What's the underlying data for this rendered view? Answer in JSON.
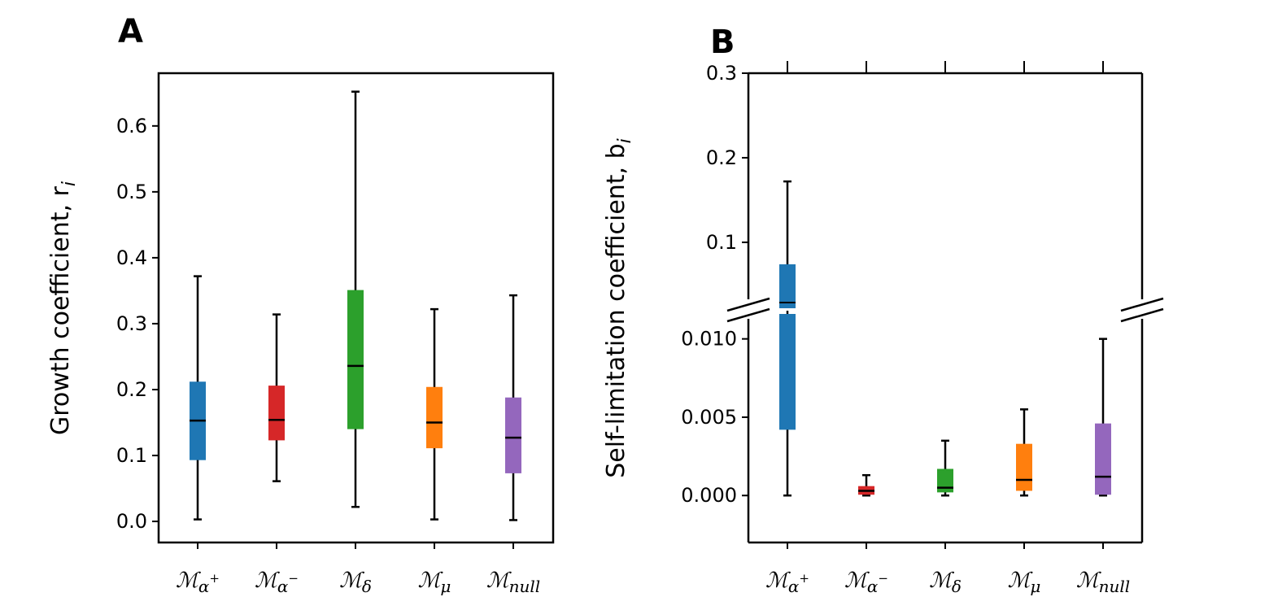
{
  "chart_data": [
    {
      "type": "box",
      "panel_label": "A",
      "ylabel": "Growth coefficient, r",
      "ylabel_sub": "i",
      "ylim": [
        -0.032,
        0.68
      ],
      "yticks": [
        "0.0",
        "0.1",
        "0.2",
        "0.3",
        "0.4",
        "0.5",
        "0.6"
      ],
      "ytick_values": [
        0.0,
        0.1,
        0.2,
        0.3,
        0.4,
        0.5,
        0.6
      ],
      "categories": [
        {
          "base": "ℳ",
          "sub": "α",
          "sup": "+"
        },
        {
          "base": "ℳ",
          "sub": "α",
          "sup": "−"
        },
        {
          "base": "ℳ",
          "sub": "δ",
          "sup": ""
        },
        {
          "base": "ℳ",
          "sub": "μ",
          "sup": ""
        },
        {
          "base": "ℳ",
          "sub": "null",
          "sup": ""
        }
      ],
      "colors": [
        "#1f77b4",
        "#d62728",
        "#2ca02c",
        "#ff7f0e",
        "#9467bd"
      ],
      "boxes": [
        {
          "whislo": 0.003,
          "q1": 0.093,
          "med": 0.153,
          "q3": 0.212,
          "whishi": 0.372
        },
        {
          "whislo": 0.061,
          "q1": 0.123,
          "med": 0.154,
          "q3": 0.206,
          "whishi": 0.314
        },
        {
          "whislo": 0.022,
          "q1": 0.14,
          "med": 0.236,
          "q3": 0.351,
          "whishi": 0.652
        },
        {
          "whislo": 0.003,
          "q1": 0.111,
          "med": 0.15,
          "q3": 0.204,
          "whishi": 0.322
        },
        {
          "whislo": 0.002,
          "q1": 0.073,
          "med": 0.127,
          "q3": 0.188,
          "whishi": 0.343
        }
      ]
    },
    {
      "type": "box",
      "panel_label": "B",
      "ylabel": "Self-limitation coefficient, b",
      "ylabel_sub": "i",
      "broken_axis": true,
      "upper_ylim": [
        0.022,
        0.3
      ],
      "upper_yticks": [
        "0.1",
        "0.2",
        "0.3"
      ],
      "upper_ytick_values": [
        0.1,
        0.2,
        0.3
      ],
      "lower_ylim": [
        -0.003,
        0.0118
      ],
      "lower_yticks": [
        "0.000",
        "0.005",
        "0.010"
      ],
      "lower_ytick_values": [
        0.0,
        0.005,
        0.01
      ],
      "categories": [
        {
          "base": "ℳ",
          "sub": "α",
          "sup": "+"
        },
        {
          "base": "ℳ",
          "sub": "α",
          "sup": "−"
        },
        {
          "base": "ℳ",
          "sub": "δ",
          "sup": ""
        },
        {
          "base": "ℳ",
          "sub": "μ",
          "sup": ""
        },
        {
          "base": "ℳ",
          "sub": "null",
          "sup": ""
        }
      ],
      "colors": [
        "#1f77b4",
        "#d62728",
        "#2ca02c",
        "#ff7f0e",
        "#9467bd"
      ],
      "boxes": [
        {
          "whislo": 0.0,
          "q1": 0.0042,
          "med": 0.0208,
          "q3": 0.074,
          "whishi": 0.172
        },
        {
          "whislo": 0.0,
          "q1": 5e-05,
          "med": 0.0003,
          "q3": 0.0006,
          "whishi": 0.0013
        },
        {
          "whislo": 0.0,
          "q1": 0.0002,
          "med": 0.0005,
          "q3": 0.0017,
          "whishi": 0.0035
        },
        {
          "whislo": 0.0,
          "q1": 0.0003,
          "med": 0.001,
          "q3": 0.0033,
          "whishi": 0.0055
        },
        {
          "whislo": 0.0,
          "q1": 5e-05,
          "med": 0.0012,
          "q3": 0.0046,
          "whishi": 0.01
        }
      ]
    }
  ]
}
